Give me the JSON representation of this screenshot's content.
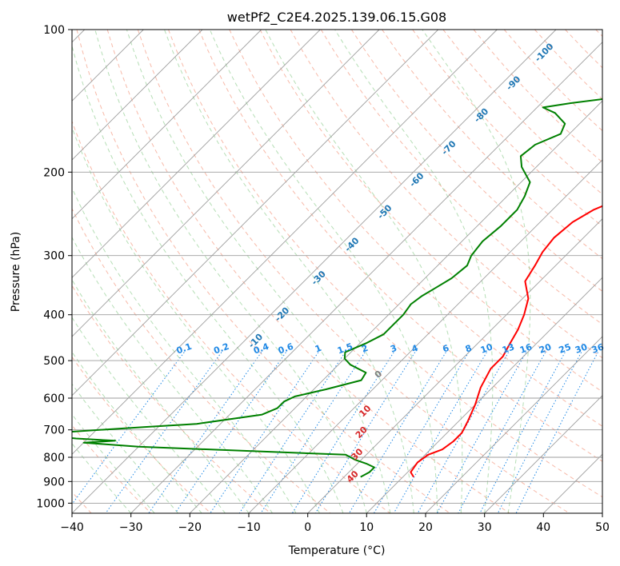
{
  "chart_data": {
    "type": "line",
    "title": "wetPf2_C2E4.2025.139.06.15.G08",
    "xlabel": "Temperature (°C)",
    "ylabel": "Pressure (hPa)",
    "xlim": [
      -40,
      50
    ],
    "ylim": [
      1050,
      100
    ],
    "y_scale": "log",
    "grid": true,
    "x_ticks": [
      -40,
      -30,
      -20,
      -10,
      0,
      10,
      20,
      30,
      40,
      50
    ],
    "y_ticks": [
      100,
      200,
      300,
      400,
      500,
      600,
      700,
      800,
      900,
      1000
    ],
    "skew": 45,
    "series": [
      {
        "color": "#ff0000",
        "points": [
          [
            11.8,
            880
          ],
          [
            10.5,
            860
          ],
          [
            10.0,
            820
          ],
          [
            10.5,
            790
          ],
          [
            12.0,
            770
          ],
          [
            12.5,
            740
          ],
          [
            12.5,
            710
          ],
          [
            11.5,
            670
          ],
          [
            10.0,
            620
          ],
          [
            8.0,
            570
          ],
          [
            6.5,
            520
          ],
          [
            6.5,
            490
          ],
          [
            5.5,
            460
          ],
          [
            4.5,
            430
          ],
          [
            3.0,
            400
          ],
          [
            1.0,
            370
          ],
          [
            -2.5,
            340
          ],
          [
            -3.5,
            315
          ],
          [
            -4.5,
            295
          ],
          [
            -5.0,
            275
          ],
          [
            -4.5,
            255
          ],
          [
            -3.0,
            240
          ],
          [
            -0.5,
            228
          ],
          [
            3.0,
            215
          ],
          [
            6.5,
            203
          ],
          [
            9.0,
            192
          ],
          [
            10.5,
            182
          ],
          [
            11.0,
            170
          ],
          [
            12.0,
            155
          ],
          [
            14.0,
            143
          ],
          [
            14.5,
            133
          ],
          [
            14.0,
            125
          ],
          [
            14.0,
            118
          ],
          [
            15.0,
            110
          ],
          [
            16.5,
            103
          ],
          [
            17.0,
            100
          ]
        ]
      },
      {
        "color": "#008000",
        "points": [
          [
            2.8,
            880
          ],
          [
            3.5,
            860
          ],
          [
            3.5,
            840
          ],
          [
            1.5,
            825
          ],
          [
            -1.0,
            810
          ],
          [
            -3.5,
            790
          ],
          [
            -40.0,
            760
          ],
          [
            -50.0,
            745
          ],
          [
            -45.0,
            738
          ],
          [
            -52.0,
            730
          ],
          [
            -60.0,
            715
          ],
          [
            -42.0,
            690
          ],
          [
            -34.0,
            680
          ],
          [
            -24.5,
            650
          ],
          [
            -23.0,
            630
          ],
          [
            -23.0,
            610
          ],
          [
            -22.0,
            595
          ],
          [
            -18.0,
            575
          ],
          [
            -13.5,
            550
          ],
          [
            -14.0,
            530
          ],
          [
            -18.0,
            510
          ],
          [
            -20.0,
            495
          ],
          [
            -21.0,
            480
          ],
          [
            -19.0,
            460
          ],
          [
            -17.5,
            440
          ],
          [
            -17.5,
            420
          ],
          [
            -17.5,
            400
          ],
          [
            -18.0,
            380
          ],
          [
            -17.5,
            365
          ],
          [
            -16.5,
            350
          ],
          [
            -15.5,
            335
          ],
          [
            -15.0,
            315
          ],
          [
            -16.0,
            300
          ],
          [
            -16.5,
            280
          ],
          [
            -16.0,
            260
          ],
          [
            -16.0,
            240
          ],
          [
            -17.0,
            225
          ],
          [
            -18.5,
            210
          ],
          [
            -22.5,
            195
          ],
          [
            -24.5,
            185
          ],
          [
            -24.0,
            175
          ],
          [
            -21.5,
            166
          ],
          [
            -22.5,
            158
          ],
          [
            -26.0,
            150
          ],
          [
            -29.0,
            146
          ],
          [
            -25.0,
            143
          ],
          [
            -20.0,
            140
          ],
          [
            -16.0,
            135
          ],
          [
            -15.0,
            128
          ],
          [
            -15.0,
            120
          ],
          [
            -15.0,
            113
          ],
          [
            -13.0,
            106
          ],
          [
            -11.0,
            100
          ]
        ]
      }
    ],
    "dry_adiabat_labels": [
      "-100",
      "-90",
      "-80",
      "-70",
      "-60",
      "-50",
      "-40",
      "-30",
      "-20",
      "-10"
    ],
    "moist_adiabat_labels": [
      "0",
      "10",
      "20",
      "30",
      "40"
    ],
    "mixing_ratio_labels": [
      "0.1",
      "0.2",
      "0.4",
      "0.6",
      "1",
      "1.5",
      "2",
      "3",
      "4",
      "6",
      "8",
      "10",
      "13",
      "16",
      "20",
      "25",
      "30",
      "36"
    ]
  }
}
